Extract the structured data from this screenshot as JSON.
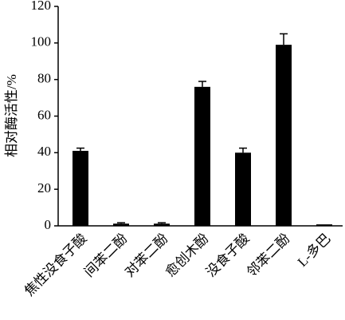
{
  "chart_data": {
    "type": "bar",
    "y_label": "相对酶活性/%",
    "categories": [
      "焦性没食子酸",
      "间苯二酚",
      "对苯二酚",
      "愈创木酚",
      "没食子酸",
      "邻苯二酚",
      "L-多巴"
    ],
    "values": [
      41,
      1.2,
      1.2,
      76,
      40,
      99,
      0.8
    ],
    "errors": [
      1.5,
      0.5,
      0.5,
      3,
      2.5,
      6,
      0
    ],
    "color": "#000000",
    "ylim": [
      0,
      120
    ],
    "yticks": [
      0,
      20,
      40,
      60,
      80,
      100,
      120
    ]
  }
}
